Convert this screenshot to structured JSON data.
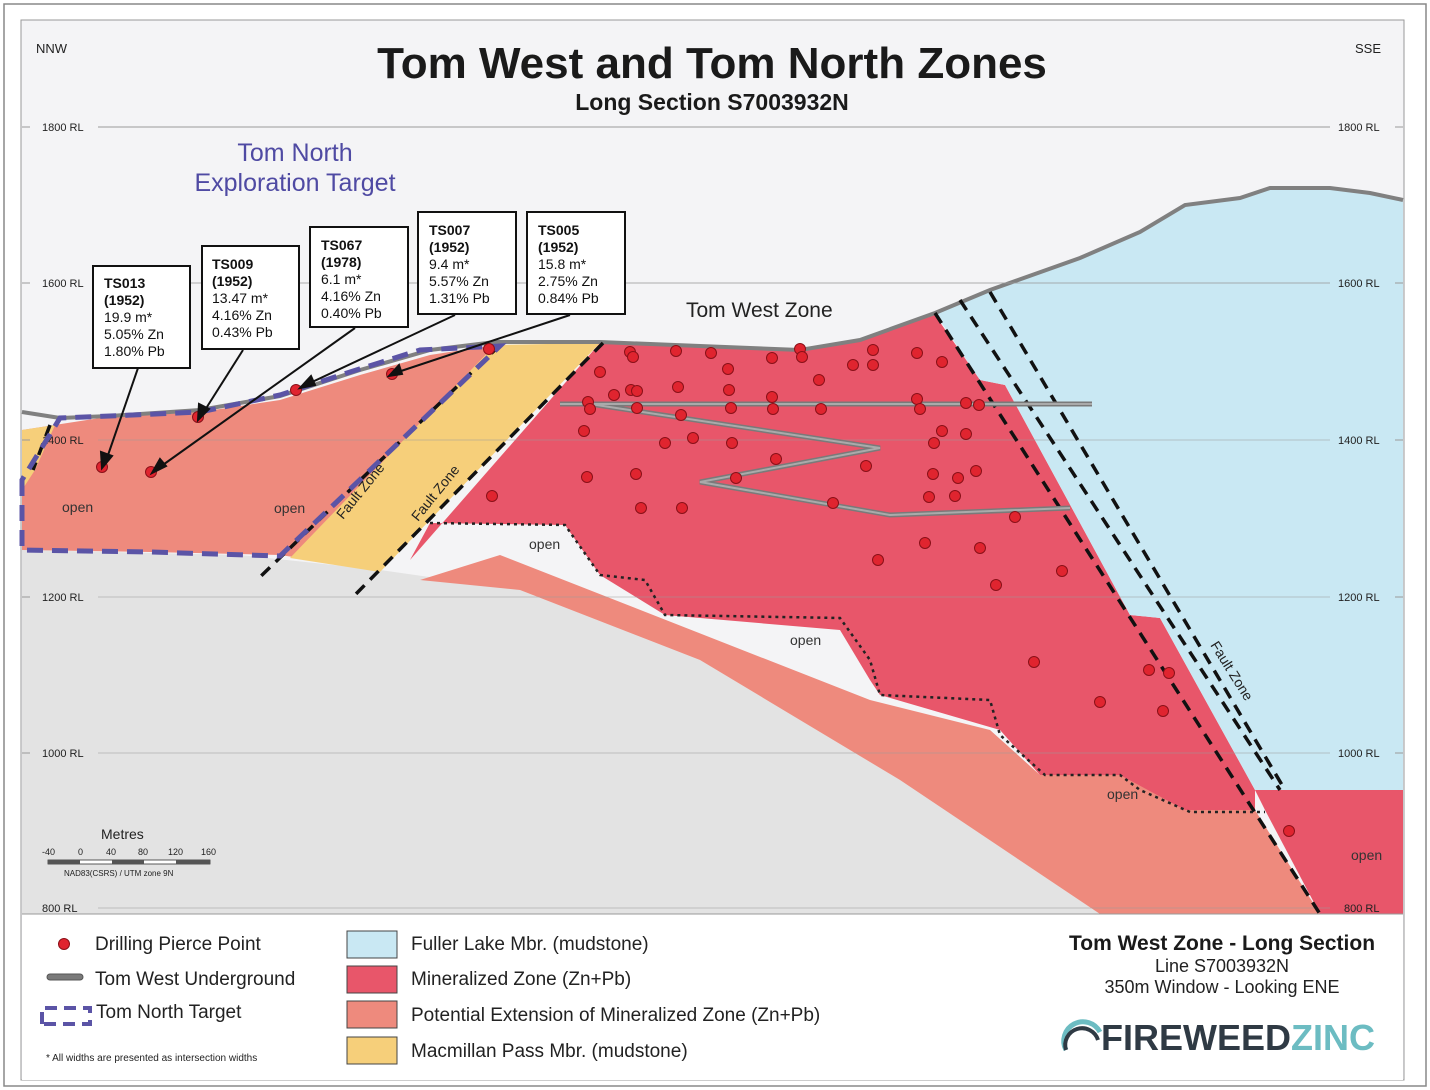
{
  "title": "Tom West and Tom North Zones",
  "subtitle": "Long Section S7003932N",
  "orientation": {
    "left": "NNW",
    "right": "SSE"
  },
  "rl_labels": [
    "1800 RL",
    "1600 RL",
    "1400 RL",
    "1200 RL",
    "1000 RL",
    "800 RL"
  ],
  "tom_north_label": [
    "Tom North",
    "Exploration Target"
  ],
  "tom_west_label": "Tom West Zone",
  "fault_zone_label": "Fault Zone",
  "open_label": "open",
  "callouts": [
    {
      "hole": "TS013",
      "year": "(1952)",
      "width": "19.9 m*",
      "zn": "5.05% Zn",
      "pb": "1.80% Pb"
    },
    {
      "hole": "TS009",
      "year": "(1952)",
      "width": "13.47 m*",
      "zn": "4.16% Zn",
      "pb": "0.43% Pb"
    },
    {
      "hole": "TS067",
      "year": "(1978)",
      "width": "6.1 m*",
      "zn": "4.16% Zn",
      "pb": "0.40% Pb"
    },
    {
      "hole": "TS007",
      "year": "(1952)",
      "width": "9.4 m*",
      "zn": "5.57% Zn",
      "pb": "1.31% Pb"
    },
    {
      "hole": "TS005",
      "year": "(1952)",
      "width": "15.8 m*",
      "zn": "2.75% Zn",
      "pb": "0.84% Pb"
    }
  ],
  "scale": {
    "title": "Metres",
    "ticks": [
      "-40",
      "0",
      "40",
      "80",
      "120",
      "160"
    ],
    "datum": "NAD83(CSRS) / UTM zone 9N"
  },
  "legend": {
    "pierce_point": "Drilling Pierce Point",
    "underground": "Tom West Underground",
    "target": "Tom North Target",
    "units": [
      {
        "label": "Fuller Lake Mbr. (mudstone)",
        "color": "#c9e8f3"
      },
      {
        "label": "Mineralized Zone (Zn+Pb)",
        "color": "#e8566a"
      },
      {
        "label": "Potential Extension of Mineralized Zone (Zn+Pb)",
        "color": "#ee8a7d"
      },
      {
        "label": "Macmillan Pass Mbr. (mudstone)",
        "color": "#f6cf7a"
      }
    ],
    "footnote": "* All widths are presented as intersection widths"
  },
  "info": {
    "title": "Tom West Zone - Long Section",
    "line1": "Line S7003932N",
    "line2": "350m Window - Looking ENE"
  },
  "logo": {
    "part1": "FIREWEED",
    "part2": "ZINC"
  },
  "colors": {
    "fuller": "#c9e8f3",
    "mineralized": "#e8566a",
    "potential": "#ee8a7d",
    "macmillan": "#f6cf7a",
    "background_rock": "#e3e3e3",
    "target_dash": "#5b54a6",
    "title_blue": "#4f4aa3",
    "logo_grey": "#2f3a44",
    "logo_teal": "#6cbcc2"
  }
}
